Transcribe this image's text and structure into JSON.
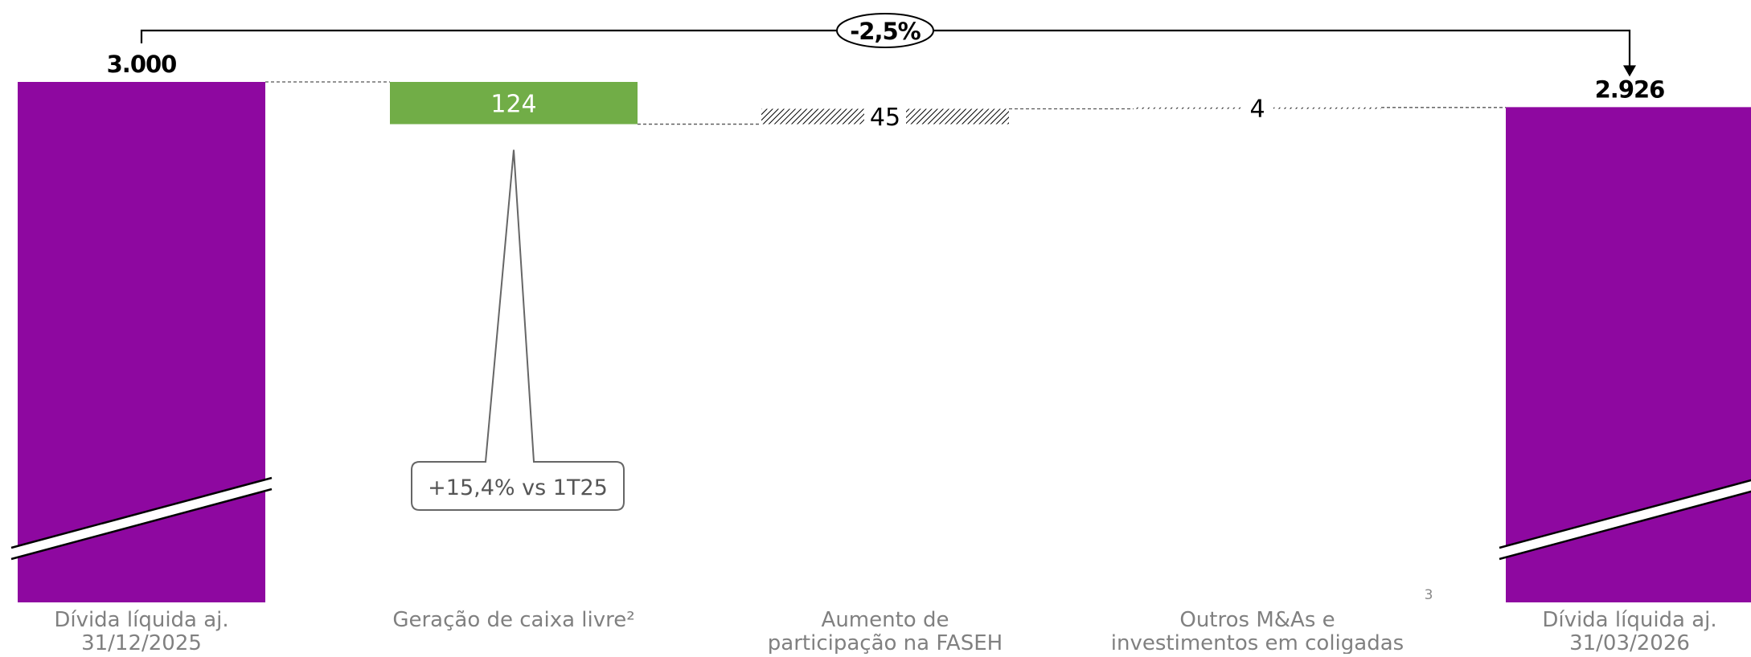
{
  "chart_data": {
    "type": "bar",
    "subtype": "waterfall",
    "categories": [
      [
        "Dívida líquida aj.",
        "31/12/2025"
      ],
      [
        "Geração de caixa livre²"
      ],
      [
        "Aumento de",
        "participação na FASEH"
      ],
      [
        "Outros M&As e",
        "investimentos em coligadas"
      ],
      [
        "Dívida líquida aj.",
        "31/03/2026"
      ]
    ],
    "steps": [
      {
        "kind": "total",
        "value": 3000,
        "label": "3.000"
      },
      {
        "kind": "decrease",
        "value": 124,
        "label": "124"
      },
      {
        "kind": "increase",
        "value": 45,
        "label": "45"
      },
      {
        "kind": "increase",
        "value": 4,
        "label": "4"
      },
      {
        "kind": "total",
        "value": 2926,
        "label": "2.926"
      }
    ],
    "axis_break": true,
    "change_label": "-2,5%",
    "callout": {
      "text": "+15,4% vs 1T25",
      "category_index": 1
    },
    "footnote_marker": "3",
    "colors": {
      "total": "#8e08a0",
      "decrease": "#71ad47",
      "increase_pattern": "#000000",
      "connector": "#555555",
      "axis_text": "#808080"
    }
  }
}
